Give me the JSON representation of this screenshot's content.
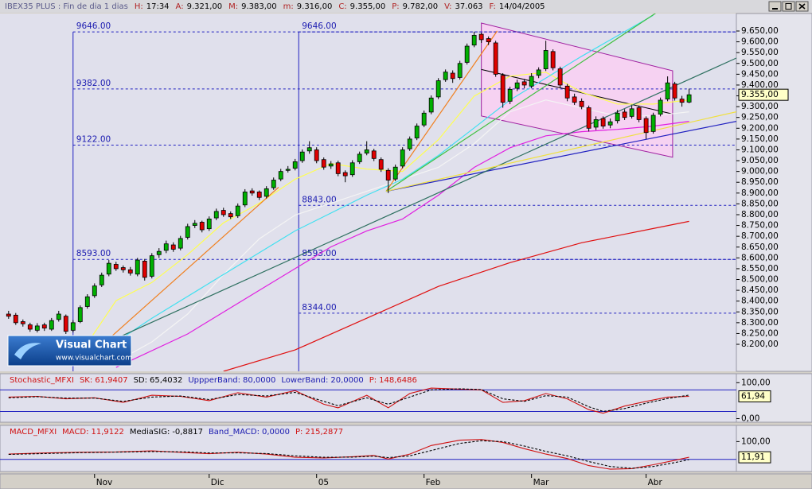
{
  "header": {
    "title": "IBEX35 PLUS : Fin de dia 1 dias",
    "fields": [
      {
        "name": "H:",
        "text": "17:34"
      },
      {
        "name": "A:",
        "text": "9.321,00"
      },
      {
        "name": "M:",
        "text": "9.383,00"
      },
      {
        "name": "m:",
        "text": "9.316,00"
      },
      {
        "name": "C:",
        "text": "9.355,00"
      },
      {
        "name": "P:",
        "text": "9.782,00"
      },
      {
        "name": "V:",
        "text": "37.063"
      },
      {
        "name": "F:",
        "text": "14/04/2005"
      }
    ]
  },
  "logo": {
    "title": "Visual Chart",
    "url": "www.visualchart.com"
  },
  "chart_data": [
    {
      "type": "candlestick",
      "open": [
        8340,
        8335,
        8305,
        8290,
        8265,
        8290,
        8270,
        8315,
        8330,
        8265,
        8305,
        8375,
        8425,
        8475,
        8525,
        8570,
        8555,
        8545,
        8525,
        8585,
        8515,
        8615,
        8635,
        8660,
        8645,
        8695,
        8750,
        8765,
        8735,
        8785,
        8820,
        8805,
        8795,
        8845,
        8910,
        8905,
        8885,
        8925,
        8965,
        9005,
        9015,
        9050,
        9095,
        9100,
        9055,
        9025,
        9040,
        8995,
        8985,
        9045,
        9085,
        9095,
        9055,
        9005,
        8965,
        9025,
        9105,
        9155,
        9215,
        9275,
        9345,
        9425,
        9455,
        9435,
        9505,
        9585,
        9635,
        9615,
        9595,
        9445,
        9325,
        9385,
        9415,
        9395,
        9445,
        9475,
        9555,
        9475,
        9395,
        9345,
        9325,
        9295,
        9205,
        9245,
        9215,
        9235,
        9275,
        9255,
        9295,
        9245,
        9185,
        9265,
        9335,
        9405,
        9335,
        9321
      ],
      "high": [
        8355,
        8345,
        8315,
        8300,
        8298,
        8300,
        8322,
        8355,
        8338,
        8312,
        8380,
        8432,
        8482,
        8532,
        8590,
        8582,
        8565,
        8558,
        8600,
        8595,
        8622,
        8645,
        8680,
        8672,
        8702,
        8758,
        8775,
        8772,
        8792,
        8828,
        8832,
        8815,
        8852,
        8918,
        8922,
        8912,
        8932,
        8972,
        9012,
        9025,
        9058,
        9102,
        9140,
        9112,
        9065,
        9048,
        9050,
        9005,
        9052,
        9092,
        9140,
        9105,
        9065,
        9015,
        9032,
        9112,
        9162,
        9222,
        9282,
        9352,
        9432,
        9472,
        9468,
        9512,
        9592,
        9646,
        9642,
        9625,
        9605,
        9455,
        9392,
        9425,
        9428,
        9455,
        9482,
        9605,
        9565,
        9485,
        9405,
        9360,
        9338,
        9305,
        9255,
        9255,
        9245,
        9285,
        9288,
        9305,
        9305,
        9255,
        9272,
        9342,
        9440,
        9415,
        9350,
        9383
      ],
      "low": [
        8318,
        8290,
        8282,
        8258,
        8255,
        8262,
        8262,
        8305,
        8248,
        8255,
        8298,
        8365,
        8415,
        8465,
        8515,
        8540,
        8532,
        8518,
        8515,
        8495,
        8505,
        8600,
        8622,
        8628,
        8635,
        8685,
        8738,
        8718,
        8725,
        8775,
        8790,
        8780,
        8785,
        8835,
        8888,
        8868,
        8875,
        8915,
        8955,
        8995,
        9005,
        9040,
        9082,
        9038,
        9008,
        9012,
        8978,
        8950,
        8975,
        9035,
        9075,
        9048,
        8998,
        8900,
        8955,
        9015,
        9095,
        9145,
        9205,
        9265,
        9335,
        9415,
        9410,
        9425,
        9495,
        9575,
        9595,
        9585,
        9438,
        9295,
        9312,
        9372,
        9385,
        9385,
        9432,
        9465,
        9468,
        9388,
        9325,
        9308,
        9288,
        9185,
        9192,
        9198,
        9200,
        9222,
        9238,
        9245,
        9228,
        9150,
        9175,
        9255,
        9325,
        9328,
        9300,
        9316
      ],
      "close": [
        8330,
        8300,
        8295,
        8270,
        8285,
        8275,
        8310,
        8340,
        8260,
        8300,
        8370,
        8420,
        8470,
        8520,
        8575,
        8550,
        8545,
        8530,
        8590,
        8510,
        8610,
        8630,
        8665,
        8640,
        8690,
        8745,
        8760,
        8730,
        8780,
        8815,
        8800,
        8790,
        8840,
        8905,
        8900,
        8880,
        8920,
        8960,
        9000,
        9010,
        9045,
        9090,
        9110,
        9050,
        9020,
        9035,
        8990,
        8980,
        9040,
        9080,
        9100,
        9060,
        9010,
        8960,
        9020,
        9100,
        9150,
        9210,
        9270,
        9340,
        9420,
        9460,
        9430,
        9500,
        9580,
        9630,
        9610,
        9600,
        9450,
        9320,
        9380,
        9410,
        9400,
        9440,
        9470,
        9560,
        9480,
        9400,
        9340,
        9320,
        9300,
        9200,
        9240,
        9210,
        9230,
        9270,
        9250,
        9290,
        9240,
        9180,
        9260,
        9330,
        9410,
        9340,
        9320,
        9355
      ],
      "up_color": "#00b000",
      "down_color": "#e00000",
      "series": [
        {
          "color": "#ffff50",
          "x": [
            10,
            15,
            20,
            25,
            30,
            35,
            40,
            45,
            50,
            55,
            60,
            65,
            70,
            75,
            80,
            85,
            90,
            95
          ],
          "values": [
            8156,
            8402,
            8486,
            8615,
            8762,
            8853,
            8964,
            9037,
            9011,
            9000,
            9147,
            9349,
            9441,
            9459,
            9367,
            9312,
            9312,
            9331
          ]
        },
        {
          "color": "#f4f4f4",
          "x": [
            15,
            20,
            25,
            30,
            35,
            40,
            45,
            50,
            55,
            60,
            65,
            70,
            75,
            80,
            85,
            90,
            95
          ],
          "values": [
            8119,
            8211,
            8340,
            8523,
            8688,
            8798,
            8853,
            8908,
            8964,
            9019,
            9129,
            9276,
            9331,
            9294,
            9257,
            9257,
            9276
          ]
        },
        {
          "color": "#40e0f0",
          "x": [
            10,
            20,
            30,
            40,
            50,
            55,
            60,
            65,
            70,
            80,
            90
          ],
          "values": [
            8101,
            8321,
            8523,
            8725,
            8890,
            8964,
            9074,
            9202,
            9331,
            9533,
            9723
          ]
        },
        {
          "color": "#e020e0",
          "x": [
            15,
            25,
            35,
            45,
            50,
            55,
            60,
            65,
            70,
            75,
            80,
            85,
            90,
            95
          ],
          "values": [
            8093,
            8248,
            8450,
            8651,
            8725,
            8780,
            8890,
            9019,
            9110,
            9165,
            9184,
            9195,
            9210,
            9232
          ]
        },
        {
          "color": "#e01010",
          "x": [
            30,
            40,
            50,
            60,
            70,
            80,
            90,
            95
          ],
          "values": [
            8075,
            8174,
            8321,
            8468,
            8578,
            8670,
            8736,
            8769
          ]
        }
      ],
      "trendlines": [
        {
          "color": "#2020c0",
          "x": [
            52.7,
            101.6
          ],
          "values": [
            8908,
            9232
          ]
        },
        {
          "color": "#f08020",
          "x": [
            52.7,
            68.2
          ],
          "values": [
            8908,
            9650
          ]
        },
        {
          "color": "#40c040",
          "x": [
            52.7,
            90.4
          ],
          "values": [
            8908,
            9734
          ]
        },
        {
          "color": "#2e7060",
          "x": [
            6.6,
            101.6
          ],
          "values": [
            8101,
            9525
          ]
        },
        {
          "color": "#f08020",
          "x": [
            10.4,
            37.7
          ],
          "values": [
            8119,
            8927
          ]
        },
        {
          "color": "#f0e040",
          "x": [
            52.7,
            101.6
          ],
          "values": [
            8908,
            9276
          ]
        }
      ],
      "channel": {
        "color": "#f6d2f2",
        "border": "#a020a0",
        "x": [
          66,
          92.7
        ],
        "upper": [
          9687,
          9466
        ],
        "lower": [
          9257,
          9066
        ]
      },
      "fibonacci": [
        {
          "x": 9,
          "levels": [
            {
              "value": 9646,
              "label": "9646.00"
            },
            {
              "value": 9382,
              "label": "9382.00"
            },
            {
              "value": 9122,
              "label": "9122.00"
            },
            {
              "value": 8593,
              "label": "8593.00"
            }
          ]
        },
        {
          "x": 40.5,
          "levels": [
            {
              "value": 9646,
              "label": "9646.00"
            },
            {
              "value": 8843,
              "label": "8843.00"
            },
            {
              "value": 8593,
              "label": "8593.00"
            },
            {
              "value": 8344,
              "label": "8344.00"
            }
          ]
        }
      ],
      "current": {
        "value": 9355,
        "label": "9.355,00"
      },
      "xlim": [
        -1.2,
        101.6
      ],
      "ylim": [
        8075,
        9731
      ],
      "xticks": [
        {
          "value": 12,
          "label": "Nov"
        },
        {
          "value": 28,
          "label": "Dic"
        },
        {
          "value": 43,
          "label": "05"
        },
        {
          "value": 58,
          "label": "Feb"
        },
        {
          "value": 73,
          "label": "Mar"
        },
        {
          "value": 89,
          "label": "Abr"
        }
      ],
      "yticks": [
        {
          "value": 8200,
          "label": "8.200,00"
        },
        {
          "value": 8250,
          "label": "8.250,00"
        },
        {
          "value": 8300,
          "label": "8.300,00"
        },
        {
          "value": 8350,
          "label": "8.350,00"
        },
        {
          "value": 8400,
          "label": "8.400,00"
        },
        {
          "value": 8450,
          "label": "8.450,00"
        },
        {
          "value": 8500,
          "label": "8.500,00"
        },
        {
          "value": 8550,
          "label": "8.550,00"
        },
        {
          "value": 8600,
          "label": "8.600,00"
        },
        {
          "value": 8650,
          "label": "8.650,00"
        },
        {
          "value": 8700,
          "label": "8.700,00"
        },
        {
          "value": 8750,
          "label": "8.750,00"
        },
        {
          "value": 8800,
          "label": "8.800,00"
        },
        {
          "value": 8850,
          "label": "8.850,00"
        },
        {
          "value": 8900,
          "label": "8.900,00"
        },
        {
          "value": 8950,
          "label": "8.950,00"
        },
        {
          "value": 9000,
          "label": "9.000,00"
        },
        {
          "value": 9050,
          "label": "9.050,00"
        },
        {
          "value": 9100,
          "label": "9.100,00"
        },
        {
          "value": 9150,
          "label": "9.150,00"
        },
        {
          "value": 9200,
          "label": "9.200,00"
        },
        {
          "value": 9250,
          "label": "9.250,00"
        },
        {
          "value": 9300,
          "label": "9.300,00"
        },
        {
          "value": 9350,
          "label": "9.350,00"
        },
        {
          "value": 9400,
          "label": "9.400,00"
        },
        {
          "value": 9450,
          "label": "9.450,00"
        },
        {
          "value": 9500,
          "label": "9.500,00"
        },
        {
          "value": 9550,
          "label": "9.550,00"
        },
        {
          "value": 9600,
          "label": "9.600,00"
        },
        {
          "value": 9650,
          "label": "9.650,00"
        }
      ]
    },
    {
      "type": "line",
      "title": "Stochastic_MFXI",
      "title_color": "#d01010",
      "params": [
        {
          "name": "SK:",
          "value": 61.9407,
          "label": "61,9407",
          "color": "#d01010"
        },
        {
          "name": "SD:",
          "value": 65.4032,
          "label": "65,4032",
          "color": "#000000"
        },
        {
          "name": "UppperBand:",
          "value": 80,
          "label": "80,0000",
          "color": "#1a1ab0"
        },
        {
          "name": "LowerBand:",
          "value": 20,
          "label": "20,0000",
          "color": "#1a1ab0"
        },
        {
          "name": "P:",
          "value": 148.6486,
          "label": "148,6486",
          "color": "#d01010"
        }
      ],
      "bands": [
        2,
        3
      ],
      "band_color": "#2020c0",
      "x": [
        0,
        4,
        8,
        12,
        16,
        20,
        24,
        28,
        32,
        36,
        40,
        44,
        46,
        50,
        53,
        56,
        59,
        63,
        66,
        69,
        72,
        75,
        78,
        81,
        83,
        86,
        89,
        92,
        95
      ],
      "series": [
        {
          "color": "#d01010",
          "style": "solid",
          "values": [
            60,
            62,
            55,
            58,
            45,
            65,
            62,
            50,
            72,
            60,
            78,
            40,
            30,
            65,
            30,
            70,
            85,
            82,
            80,
            45,
            50,
            70,
            55,
            25,
            15,
            35,
            48,
            60,
            61.94
          ]
        },
        {
          "color": "#000000",
          "style": "dashed",
          "values": [
            58,
            61,
            57,
            57,
            48,
            60,
            63,
            53,
            67,
            63,
            73,
            48,
            36,
            58,
            40,
            60,
            80,
            83,
            81,
            55,
            48,
            64,
            60,
            33,
            20,
            28,
            43,
            56,
            65.4
          ]
        }
      ],
      "current": {
        "value": 61.94,
        "label": "61,94"
      },
      "xlim": [
        -1.2,
        101.6
      ],
      "ylim": [
        -10,
        125
      ],
      "yticks": [
        {
          "value": 0,
          "label": "0,00"
        },
        {
          "value": 100,
          "label": "100,00"
        }
      ]
    },
    {
      "type": "line",
      "title": "MACD_MFXI",
      "title_color": "#d01010",
      "params": [
        {
          "name": "MACD:",
          "value": 11.9122,
          "label": "11,9122",
          "color": "#d01010"
        },
        {
          "name": "MediaSIG:",
          "value": -0.8817,
          "label": "-0,8817",
          "color": "#000000"
        },
        {
          "name": "Band_MACD:",
          "value": 0,
          "label": "0,0000",
          "color": "#1a1ab0"
        },
        {
          "name": "P:",
          "value": 215.2877,
          "label": "215,2877",
          "color": "#d01010"
        }
      ],
      "bands": [
        2
      ],
      "band_color": "#2020c0",
      "x": [
        0,
        5,
        10,
        15,
        20,
        25,
        28,
        32,
        36,
        40,
        44,
        48,
        51,
        53,
        56,
        59,
        63,
        66,
        69,
        72,
        75,
        78,
        81,
        84,
        87,
        90,
        93,
        95
      ],
      "series": [
        {
          "color": "#d01010",
          "style": "solid",
          "values": [
            30,
            36,
            40,
            42,
            48,
            38,
            32,
            40,
            30,
            12,
            8,
            15,
            22,
            2,
            30,
            78,
            108,
            112,
            95,
            60,
            30,
            5,
            -35,
            -55,
            -52,
            -30,
            -5,
            11.9122
          ]
        },
        {
          "color": "#000000",
          "style": "dashed",
          "values": [
            28,
            33,
            38,
            41,
            44,
            42,
            36,
            37,
            33,
            20,
            12,
            13,
            18,
            10,
            20,
            50,
            90,
            105,
            100,
            75,
            45,
            20,
            -12,
            -40,
            -50,
            -40,
            -18,
            -0.8817
          ]
        }
      ],
      "current": {
        "value": 11.91,
        "label": "11,91"
      },
      "xlim": [
        -1.2,
        101.6
      ],
      "ylim": [
        -68,
        191
      ],
      "yticks": [
        {
          "value": 100,
          "label": "100,00"
        }
      ]
    }
  ]
}
